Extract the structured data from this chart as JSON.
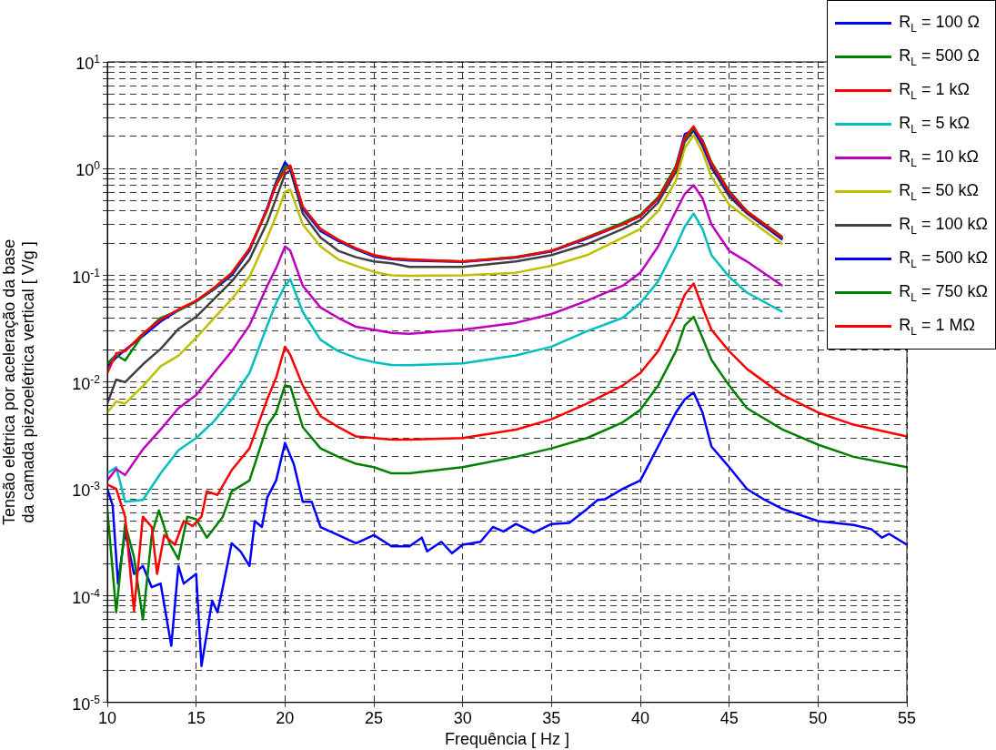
{
  "chart_data": {
    "type": "line",
    "xlabel": "Frequência [ Hz ]",
    "ylabel": "Tensão elétrica por aceleração da base\nda camada piezoelétrica vertical [ V/g ]",
    "xlim": [
      10,
      55
    ],
    "xticks": [
      10,
      15,
      20,
      25,
      30,
      35,
      40,
      45,
      50,
      55
    ],
    "ylim": [
      1e-05,
      10
    ],
    "log": "y",
    "grid": true,
    "legend": "top right",
    "marker": "none",
    "line_style": "solid",
    "yticks": [
      {
        "value": 1e-05,
        "label": "10$^{-5}$"
      },
      {
        "value": 2e-05,
        "label": null
      },
      {
        "value": 3e-05,
        "label": null
      },
      {
        "value": 4e-05,
        "label": null
      },
      {
        "value": 5e-05,
        "label": null
      },
      {
        "value": 6e-05,
        "label": null
      },
      {
        "value": 7e-05,
        "label": null
      },
      {
        "value": 8e-05,
        "label": null
      },
      {
        "value": 9e-05,
        "label": null
      },
      {
        "value": 0.0001,
        "label": "10$^{-4}$"
      },
      {
        "value": 0.0002,
        "label": null
      },
      {
        "value": 0.0003,
        "label": null
      },
      {
        "value": 0.0004,
        "label": null
      },
      {
        "value": 0.0005,
        "label": null
      },
      {
        "value": 0.0006,
        "label": null
      },
      {
        "value": 0.0007,
        "label": null
      },
      {
        "value": 0.0008,
        "label": null
      },
      {
        "value": 0.0009,
        "label": null
      },
      {
        "value": 0.001,
        "label": "10$^{-3}$"
      },
      {
        "value": 0.002,
        "label": null
      },
      {
        "value": 0.003,
        "label": null
      },
      {
        "value": 0.004,
        "label": null
      },
      {
        "value": 0.005,
        "label": null
      },
      {
        "value": 0.006,
        "label": null
      },
      {
        "value": 0.007,
        "label": null
      },
      {
        "value": 0.008,
        "label": null
      },
      {
        "value": 0.009,
        "label": null
      },
      {
        "value": 0.01,
        "label": "10$^{-2}$"
      },
      {
        "value": 0.02,
        "label": null
      },
      {
        "value": 0.03,
        "label": null
      },
      {
        "value": 0.04,
        "label": null
      },
      {
        "value": 0.05,
        "label": null
      },
      {
        "value": 0.06,
        "label": null
      },
      {
        "value": 0.07,
        "label": null
      },
      {
        "value": 0.08,
        "label": null
      },
      {
        "value": 0.09,
        "label": null
      },
      {
        "value": 0.1,
        "label": "10$^{-1}$"
      },
      {
        "value": 0.2,
        "label": null
      },
      {
        "value": 0.3,
        "label": null
      },
      {
        "value": 0.4,
        "label": null
      },
      {
        "value": 0.5,
        "label": null
      },
      {
        "value": 0.6,
        "label": null
      },
      {
        "value": 0.7,
        "label": null
      },
      {
        "value": 0.8,
        "label": null
      },
      {
        "value": 0.9,
        "label": null
      },
      {
        "value": 1,
        "label": "10$^{0}$"
      },
      {
        "value": 2,
        "label": null
      },
      {
        "value": 3,
        "label": null
      },
      {
        "value": 4,
        "label": null
      },
      {
        "value": 5,
        "label": null
      },
      {
        "value": 6,
        "label": null
      },
      {
        "value": 7,
        "label": null
      },
      {
        "value": 8,
        "label": null
      },
      {
        "value": 9,
        "label": null
      },
      {
        "value": 10,
        "label": "10$^{1}$"
      }
    ],
    "series": [
      {
        "name": "R$_{L}$ = 100 Ω",
        "color": "#0000ff",
        "x": [
          10,
          10.3,
          10.6,
          11,
          11.5,
          12,
          12.5,
          13,
          13.6,
          14,
          14.3,
          15,
          15.3,
          15.9,
          16.2,
          16.5,
          17,
          17.5,
          18,
          18.3,
          18.7,
          19,
          19.5,
          20,
          20.5,
          21,
          21.5,
          22,
          23,
          24,
          25,
          26,
          27,
          27.7,
          28,
          28.8,
          29.4,
          30,
          31,
          31.7,
          32.3,
          33,
          34,
          35,
          36,
          37,
          37.6,
          38,
          39,
          40,
          41,
          42,
          42.5,
          43,
          43.5,
          44,
          45,
          46,
          47,
          48,
          50,
          52,
          53,
          53.6,
          54,
          55
        ],
        "values": [
          0.001,
          0.0007,
          0.00013,
          0.0004,
          0.00016,
          0.00019,
          0.00012,
          0.00013,
          3.4e-05,
          0.00019,
          0.00013,
          0.00016,
          2.2e-05,
          9e-05,
          7e-05,
          0.00012,
          0.00031,
          0.00026,
          0.00019,
          0.0005,
          0.00044,
          0.00083,
          0.0012,
          0.0027,
          0.0017,
          0.00076,
          0.00076,
          0.00044,
          0.00037,
          0.00031,
          0.00037,
          0.00029,
          0.00029,
          0.00035,
          0.00026,
          0.00032,
          0.00025,
          0.0003,
          0.00032,
          0.00044,
          0.0004,
          0.00047,
          0.00039,
          0.00047,
          0.00048,
          0.00065,
          0.00079,
          0.0008,
          0.001,
          0.0012,
          0.0025,
          0.0052,
          0.0069,
          0.008,
          0.0052,
          0.0025,
          0.0016,
          0.001,
          0.00079,
          0.00065,
          0.0005,
          0.00046,
          0.00042,
          0.00035,
          0.00038,
          0.0003
        ]
      },
      {
        "name": "R$_{L}$ = 500 Ω",
        "color": "#008000",
        "x": [
          10,
          10.5,
          11,
          11.5,
          12,
          12.5,
          12.9,
          13.5,
          14,
          14.5,
          15,
          15.6,
          16.5,
          17,
          18,
          19,
          19.5,
          20,
          20.3,
          21,
          22,
          23,
          24,
          25,
          26,
          27,
          30,
          33,
          35,
          37,
          39,
          40,
          41,
          42,
          42.5,
          43,
          43.5,
          44,
          45,
          46,
          48,
          50,
          52,
          55
        ],
        "values": [
          0.00065,
          7e-05,
          0.00047,
          0.00023,
          6e-05,
          0.00037,
          0.00063,
          0.00031,
          0.00022,
          0.00055,
          0.00052,
          0.00035,
          0.00055,
          0.00095,
          0.0012,
          0.0039,
          0.0052,
          0.0093,
          0.0091,
          0.0038,
          0.0024,
          0.002,
          0.00172,
          0.0016,
          0.0014,
          0.0014,
          0.0016,
          0.002,
          0.0024,
          0.003,
          0.0042,
          0.0055,
          0.0093,
          0.0195,
          0.034,
          0.041,
          0.026,
          0.0162,
          0.0093,
          0.0057,
          0.0036,
          0.0026,
          0.002,
          0.0016
        ]
      },
      {
        "name": "R$_{L}$ = 1 kΩ",
        "color": "#ff0000",
        "x": [
          10,
          10.5,
          11,
          11.5,
          12,
          12.5,
          12.8,
          13.2,
          13.8,
          14.3,
          14.8,
          15.3,
          15.6,
          16.2,
          17,
          18,
          19,
          19.5,
          20,
          20.3,
          21,
          22,
          23,
          24,
          25,
          26,
          27,
          30,
          33,
          35,
          37,
          39,
          40,
          41,
          42,
          42.5,
          43,
          43.5,
          44,
          45,
          46,
          48,
          50,
          52,
          55
        ],
        "values": [
          0.0011,
          0.001,
          0.00055,
          7.2e-05,
          0.00055,
          0.00044,
          0.00016,
          0.00037,
          0.0003,
          0.0005,
          0.00045,
          0.00055,
          0.00095,
          0.00088,
          0.0015,
          0.0024,
          0.0069,
          0.011,
          0.0215,
          0.018,
          0.0093,
          0.0048,
          0.0038,
          0.0031,
          0.003,
          0.0029,
          0.0029,
          0.003,
          0.0036,
          0.0045,
          0.0063,
          0.0093,
          0.0122,
          0.0195,
          0.041,
          0.066,
          0.084,
          0.05,
          0.031,
          0.0195,
          0.0133,
          0.0076,
          0.0052,
          0.004,
          0.0031
        ]
      },
      {
        "name": "R$_{L}$ = 5 kΩ",
        "color": "#00bfbf",
        "x": [
          10,
          10.5,
          11,
          12,
          13,
          14,
          15,
          16,
          17,
          18,
          19,
          19.5,
          20,
          20.3,
          21,
          22,
          23,
          24,
          25,
          26,
          27,
          30,
          33,
          35,
          37,
          39,
          40,
          41,
          42,
          42.5,
          43,
          43.5,
          44,
          45,
          46,
          48
        ],
        "values": [
          0.0014,
          0.0016,
          0.00076,
          0.00079,
          0.0014,
          0.0023,
          0.003,
          0.0043,
          0.0069,
          0.0122,
          0.034,
          0.055,
          0.08,
          0.092,
          0.0455,
          0.0249,
          0.0195,
          0.0169,
          0.0154,
          0.0145,
          0.0144,
          0.015,
          0.0178,
          0.0215,
          0.03,
          0.04,
          0.055,
          0.088,
          0.187,
          0.286,
          0.38,
          0.272,
          0.155,
          0.097,
          0.069,
          0.0455
        ]
      },
      {
        "name": "R$_{L}$ = 10 kΩ",
        "color": "#bf00bf",
        "x": [
          10,
          10.5,
          11,
          12,
          13,
          14,
          15,
          16,
          17,
          18,
          19,
          19.5,
          20,
          20.3,
          21,
          22,
          23,
          24,
          25,
          26,
          27,
          30,
          33,
          35,
          37,
          39,
          40,
          41,
          42,
          42.5,
          43,
          43.5,
          44,
          45,
          46,
          48
        ],
        "values": [
          0.0012,
          0.00154,
          0.00135,
          0.00235,
          0.0036,
          0.0057,
          0.0076,
          0.0122,
          0.0195,
          0.034,
          0.08,
          0.117,
          0.187,
          0.17,
          0.08,
          0.05,
          0.04,
          0.033,
          0.031,
          0.029,
          0.0284,
          0.031,
          0.036,
          0.0435,
          0.058,
          0.08,
          0.106,
          0.187,
          0.4,
          0.58,
          0.7,
          0.527,
          0.3,
          0.17,
          0.135,
          0.08
        ]
      },
      {
        "name": "R$_{L}$ = 50 kΩ",
        "color": "#bfbf00",
        "x": [
          10,
          10.5,
          11,
          12,
          13,
          14,
          15,
          16,
          17,
          18,
          19,
          19.5,
          20,
          20.3,
          21,
          22,
          23,
          24,
          25,
          26,
          27,
          30,
          33,
          35,
          37,
          39,
          40,
          41,
          42,
          42.5,
          43,
          43.5,
          44,
          45,
          46,
          48
        ],
        "values": [
          0.0052,
          0.0066,
          0.0063,
          0.0092,
          0.0141,
          0.0177,
          0.026,
          0.0397,
          0.06,
          0.097,
          0.226,
          0.36,
          0.607,
          0.636,
          0.3,
          0.187,
          0.141,
          0.123,
          0.108,
          0.1,
          0.099,
          0.1,
          0.106,
          0.123,
          0.155,
          0.226,
          0.272,
          0.4,
          0.77,
          1.56,
          2.06,
          1.42,
          0.84,
          0.46,
          0.345,
          0.196
        ]
      },
      {
        "name": "R$_{L}$ = 100 kΩ",
        "color": "#404040",
        "x": [
          10,
          10.5,
          11,
          12,
          13,
          14,
          15,
          16,
          17,
          18,
          19,
          19.5,
          20,
          20.3,
          21,
          22,
          23,
          24,
          25,
          26,
          27,
          30,
          33,
          35,
          37,
          39,
          40,
          41,
          42,
          42.5,
          43,
          43.5,
          44,
          45,
          46,
          48
        ],
        "values": [
          0.0063,
          0.0106,
          0.01,
          0.0147,
          0.0205,
          0.0315,
          0.041,
          0.06,
          0.088,
          0.141,
          0.314,
          0.527,
          0.885,
          0.97,
          0.38,
          0.226,
          0.17,
          0.148,
          0.135,
          0.13,
          0.12,
          0.12,
          0.135,
          0.155,
          0.196,
          0.272,
          0.33,
          0.48,
          0.93,
          1.79,
          2.27,
          1.63,
          1.02,
          0.55,
          0.38,
          0.216
        ]
      },
      {
        "name": "R$_{L}$ = 500 kΩ",
        "color": "#0000ff",
        "x": [
          10,
          10.5,
          11,
          12,
          13,
          14,
          15,
          16,
          17,
          18,
          19,
          19.5,
          20,
          20.3,
          21,
          22,
          23,
          24,
          25,
          26,
          27,
          30,
          33,
          35,
          37,
          39,
          40,
          41,
          42,
          42.5,
          43,
          43.5,
          44,
          45,
          46,
          48
        ],
        "values": [
          0.014,
          0.017,
          0.02,
          0.027,
          0.037,
          0.047,
          0.057,
          0.074,
          0.1,
          0.17,
          0.43,
          0.75,
          1.15,
          1.0,
          0.42,
          0.26,
          0.21,
          0.175,
          0.15,
          0.142,
          0.138,
          0.134,
          0.147,
          0.168,
          0.222,
          0.3,
          0.36,
          0.52,
          1.05,
          2.1,
          2.3,
          1.7,
          1.07,
          0.59,
          0.39,
          0.22
        ]
      },
      {
        "name": "R$_{L}$ = 750 kΩ",
        "color": "#008000",
        "x": [
          10,
          10.5,
          11,
          12,
          13,
          14,
          15,
          16,
          17,
          18,
          19,
          19.5,
          20,
          20.3,
          21,
          22,
          23,
          24,
          25,
          26,
          27,
          30,
          33,
          35,
          37,
          39,
          40,
          41,
          42,
          42.5,
          43,
          43.5,
          44,
          45,
          46,
          48
        ],
        "values": [
          0.015,
          0.018,
          0.016,
          0.028,
          0.04,
          0.047,
          0.057,
          0.075,
          0.104,
          0.175,
          0.41,
          0.72,
          1.05,
          1.05,
          0.44,
          0.27,
          0.215,
          0.178,
          0.154,
          0.144,
          0.14,
          0.135,
          0.149,
          0.17,
          0.228,
          0.31,
          0.37,
          0.54,
          1.05,
          1.9,
          2.4,
          1.85,
          1.15,
          0.62,
          0.4,
          0.23
        ]
      },
      {
        "name": "R$_{L}$ = 1 MΩ",
        "color": "#ff0000",
        "x": [
          10,
          10.5,
          11,
          12,
          13,
          14,
          15,
          16,
          17,
          18,
          19,
          19.5,
          20,
          20.3,
          21,
          22,
          23,
          24,
          25,
          26,
          27,
          30,
          33,
          35,
          37,
          39,
          40,
          41,
          42,
          42.5,
          43,
          43.5,
          44,
          45,
          46,
          48
        ],
        "values": [
          0.0122,
          0.0186,
          0.0195,
          0.0285,
          0.0385,
          0.048,
          0.058,
          0.0765,
          0.106,
          0.179,
          0.417,
          0.7,
          0.97,
          1.07,
          0.437,
          0.273,
          0.216,
          0.179,
          0.155,
          0.144,
          0.141,
          0.135,
          0.148,
          0.17,
          0.226,
          0.3,
          0.36,
          0.527,
          1.0,
          1.97,
          2.49,
          1.79,
          1.12,
          0.607,
          0.397,
          0.226
        ]
      }
    ]
  }
}
